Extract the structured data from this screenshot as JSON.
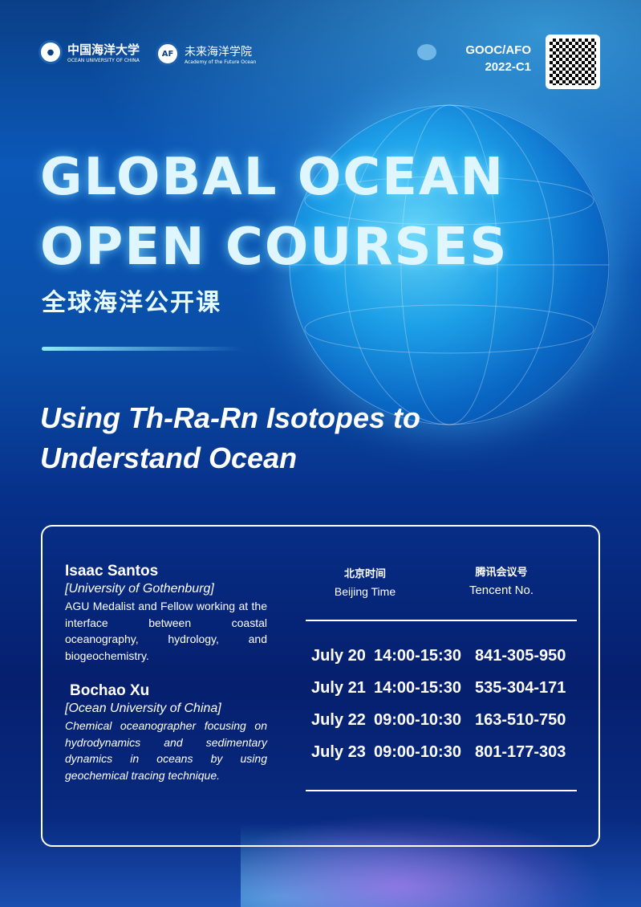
{
  "header": {
    "ouc_name_cn": "中国海洋大学",
    "ouc_name_en": "OCEAN UNIVERSITY OF CHINA",
    "afo_name_cn": "未来海洋学院",
    "afo_name_en": "Academy of the Future Ocean",
    "code_line1": "GOOC/AFO",
    "code_line2": "2022-C1",
    "qr_icon": "qr-code"
  },
  "title": {
    "line1": "GLOBAL OCEAN",
    "line2": "OPEN COURSES",
    "cn": "全球海洋公开课"
  },
  "talk": {
    "line1": "Using Th-Ra-Rn Isotopes to",
    "line2": "Understand Ocean"
  },
  "speakers": [
    {
      "name": "Isaac Santos",
      "affiliation": "[University of Gothenburg]",
      "bio": "AGU Medalist and Fellow working at the interface between coastal oceanography, hydrology, and biogeochemistry."
    },
    {
      "name": "Bochao Xu",
      "affiliation": "[Ocean University of China]",
      "bio": "Chemical oceanographer focusing on hydrodynamics and sedimentary dynamics in oceans by using geochemical tracing technique."
    }
  ],
  "schedule": {
    "time_header_cn": "北京时间",
    "time_header_en": "Beijing Time",
    "id_header_cn": "腾讯会议号",
    "id_header_en": "Tencent No.",
    "rows": [
      {
        "date": "July 20",
        "time": "14:00-15:30",
        "id": "841-305-950"
      },
      {
        "date": "July 21",
        "time": "14:00-15:30",
        "id": "535-304-171"
      },
      {
        "date": "July 22",
        "time": "09:00-10:30",
        "id": "163-510-750"
      },
      {
        "date": "July 23",
        "time": "09:00-10:30",
        "id": "801-177-303"
      }
    ]
  }
}
